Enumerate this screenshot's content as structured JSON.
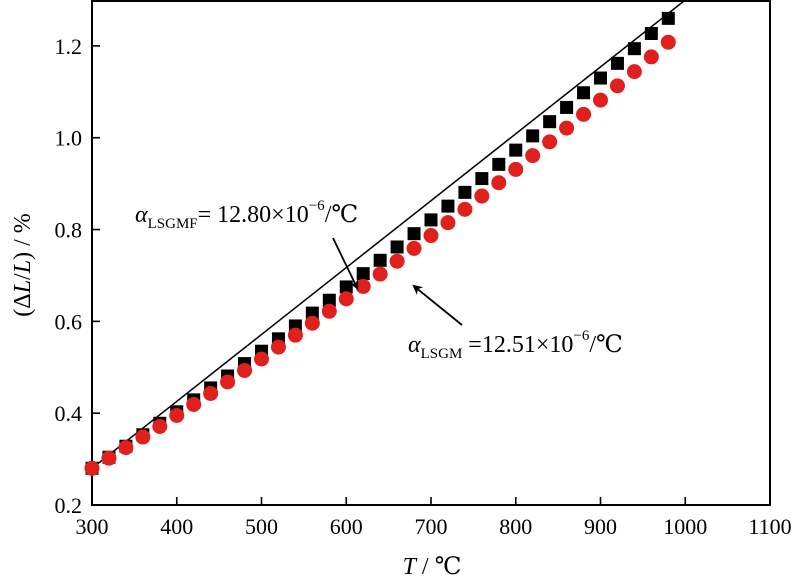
{
  "chart_data": {
    "type": "scatter",
    "xlabel": {
      "symbol": "T",
      "unit": " / ℃"
    },
    "ylabel": {
      "prefix": "(Δ",
      "symbol": "L",
      "slash": "/",
      "symbol2": "L",
      "suffix": ") / %"
    },
    "xlim": [
      300,
      1100
    ],
    "ylim": [
      0.2,
      1.3
    ],
    "xticks": [
      300,
      400,
      500,
      600,
      700,
      800,
      900,
      1000,
      1100
    ],
    "yticks": [
      0.2,
      0.4,
      0.6,
      0.8,
      1.0,
      1.2
    ],
    "xtick_labels": [
      "300",
      "400",
      "500",
      "600",
      "700",
      "800",
      "900",
      "1000",
      "1100"
    ],
    "ytick_labels": [
      "0.2",
      "0.4",
      "0.6",
      "0.8",
      "1.0",
      "1.2"
    ],
    "grid": false,
    "series": [
      {
        "marker": "square",
        "color": "#000000",
        "x": [
          300,
          320,
          340,
          360,
          380,
          400,
          420,
          440,
          460,
          480,
          500,
          520,
          540,
          560,
          580,
          600,
          620,
          640,
          660,
          680,
          700,
          720,
          740,
          760,
          780,
          800,
          820,
          840,
          860,
          880,
          900,
          920,
          940,
          960,
          980
        ],
        "y": [
          0.28,
          0.304,
          0.328,
          0.353,
          0.378,
          0.403,
          0.429,
          0.455,
          0.481,
          0.508,
          0.535,
          0.562,
          0.59,
          0.618,
          0.646,
          0.675,
          0.704,
          0.733,
          0.762,
          0.791,
          0.821,
          0.851,
          0.881,
          0.911,
          0.942,
          0.973,
          1.004,
          1.035,
          1.066,
          1.098,
          1.13,
          1.162,
          1.194,
          1.227,
          1.26
        ]
      },
      {
        "marker": "circle",
        "color": "#e0201d",
        "x": [
          300,
          320,
          340,
          360,
          380,
          400,
          420,
          440,
          460,
          480,
          500,
          520,
          540,
          560,
          580,
          600,
          620,
          640,
          660,
          680,
          700,
          720,
          740,
          760,
          780,
          800,
          820,
          840,
          860,
          880,
          900,
          920,
          940,
          960,
          980
        ],
        "y": [
          0.28,
          0.302,
          0.325,
          0.348,
          0.371,
          0.395,
          0.419,
          0.443,
          0.468,
          0.493,
          0.518,
          0.544,
          0.57,
          0.596,
          0.622,
          0.649,
          0.676,
          0.703,
          0.731,
          0.759,
          0.787,
          0.815,
          0.844,
          0.873,
          0.902,
          0.931,
          0.961,
          0.991,
          1.021,
          1.051,
          1.082,
          1.113,
          1.144,
          1.176,
          1.208
        ]
      }
    ],
    "fit_line": {
      "color": "#000000",
      "x": [
        300,
        1000
      ],
      "y_at": [
        0.28,
        1.3
      ]
    },
    "annotations": [
      {
        "symbol": "α",
        "subscript": "LSGMF",
        "value": "= 12.80×10",
        "exponent": "−6",
        "unit": "/℃",
        "arrow_to": [
          613,
          0.655
        ]
      },
      {
        "symbol": "α",
        "subscript": "LSGM",
        "value": " =12.51×10",
        "exponent": "−6",
        "unit": "/℃",
        "arrow_to": [
          668,
          0.69
        ]
      }
    ]
  }
}
